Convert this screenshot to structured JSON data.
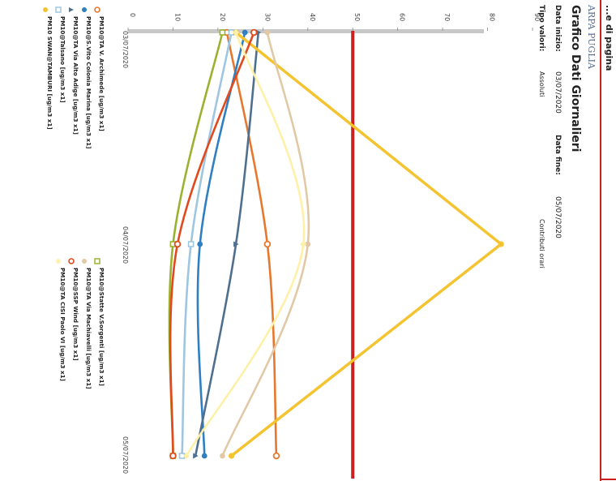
{
  "header": {
    "brand": "ARPA PUGLIA",
    "title": "Grafico Dati Giornalieri",
    "start_label": "Data inizio:",
    "start_value": "03/07/2020",
    "end_label": "Data fine:",
    "end_value": "05/07/2020",
    "type_label": "Tipo valori:",
    "type_value": "Assoluti",
    "contrib": "Contributi orari",
    "top_right_fragment": "...e di pagina"
  },
  "colors": {
    "threshold": "#cc1f1f",
    "frame": "#cc1f1f",
    "axis": "#bbbbbb"
  },
  "chart_data": {
    "type": "line",
    "orientation": "rotated 90deg clockwise",
    "x": [
      "03/07/2020",
      "04/07/2020",
      "05/07/2020"
    ],
    "xlabel": "",
    "ylabel": "",
    "ylim": [
      0,
      90
    ],
    "yticks": [
      "0",
      "10",
      "20",
      "30",
      "40",
      "50",
      "60",
      "70",
      "80",
      "90"
    ],
    "threshold": 50,
    "series": [
      {
        "name": "PM10@TA V. Archimede [ug/m3 x1]",
        "color": "#e8772e",
        "marker": "circle-open",
        "values": [
          22,
          31,
          33
        ]
      },
      {
        "name": "PM10@S.Vito Colonia Marina [ug/m3 x1]",
        "color": "#2f7fc1",
        "marker": "circle",
        "values": [
          26,
          16,
          17
        ]
      },
      {
        "name": "PM10@TA Via Alto Adige [ug/m3 x1]",
        "color": "#4f6f8f",
        "marker": "triangle",
        "values": [
          29,
          24,
          15
        ]
      },
      {
        "name": "PM10@Talsano [ug/m3 x1]",
        "color": "#9fc6e0",
        "marker": "square-open",
        "values": [
          23,
          14,
          12
        ]
      },
      {
        "name": "PM10 SWAN@TAMBURI [ug/m3 x1]",
        "color": "#f4c430",
        "marker": "star",
        "values": [
          24,
          83,
          23
        ]
      },
      {
        "name": "PM10@Statte V.Sorgenti [ug/m3 x1]",
        "color": "#9bb22e",
        "marker": "square-open",
        "values": [
          21,
          10,
          10
        ]
      },
      {
        "name": "PM10@TA Via Machiavelli [ug/m3 x1]",
        "color": "#e2c9a6",
        "marker": "circle",
        "values": [
          31,
          40,
          21
        ]
      },
      {
        "name": "PM10@SSP Wind [ug/m3 x1]",
        "color": "#e04a1c",
        "marker": "circle-open",
        "values": [
          28,
          11,
          10
        ]
      },
      {
        "name": "PM10@TA CISI Paolo VI [ug/m3 x1]",
        "color": "#fff0a8",
        "marker": "diamond",
        "values": [
          24,
          39,
          13
        ]
      }
    ],
    "legend_placement": "bottom",
    "grid": false
  }
}
